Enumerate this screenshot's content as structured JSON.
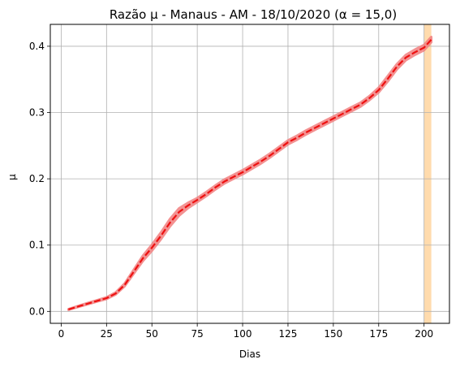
{
  "chart_data": {
    "type": "line",
    "title": "Razão μ - Manaus - AM - 18/10/2020 (α = 15,0)",
    "xlabel": "Dias",
    "ylabel": "μ",
    "xlim": [
      -6,
      214
    ],
    "ylim": [
      -0.018,
      0.433
    ],
    "xticks": [
      0,
      25,
      50,
      75,
      100,
      125,
      150,
      175,
      200
    ],
    "xtick_labels": [
      "0",
      "25",
      "50",
      "75",
      "100",
      "125",
      "150",
      "175",
      "200"
    ],
    "yticks": [
      0.0,
      0.1,
      0.2,
      0.3,
      0.4
    ],
    "ytick_labels": [
      "0.0",
      "0.1",
      "0.2",
      "0.3",
      "0.4"
    ],
    "grid": true,
    "shaded_region": {
      "x": [
        200,
        204
      ],
      "color": "#ffdbad"
    },
    "series": [
      {
        "style": "dashed",
        "color": "#ee1111",
        "band_color": "#f28080",
        "x": [
          4,
          10,
          15,
          20,
          25,
          30,
          35,
          40,
          45,
          50,
          55,
          60,
          65,
          70,
          75,
          80,
          85,
          90,
          95,
          100,
          105,
          110,
          115,
          120,
          125,
          130,
          135,
          140,
          145,
          150,
          155,
          160,
          165,
          170,
          175,
          180,
          185,
          190,
          195,
          200,
          204
        ],
        "y": [
          0.003,
          0.008,
          0.012,
          0.016,
          0.02,
          0.027,
          0.04,
          0.06,
          0.08,
          0.096,
          0.114,
          0.134,
          0.15,
          0.16,
          0.168,
          0.177,
          0.187,
          0.196,
          0.203,
          0.21,
          0.218,
          0.226,
          0.235,
          0.245,
          0.255,
          0.262,
          0.27,
          0.277,
          0.284,
          0.291,
          0.298,
          0.305,
          0.312,
          0.322,
          0.334,
          0.351,
          0.369,
          0.383,
          0.391,
          0.398,
          0.41
        ],
        "band_halfwidth": [
          0.0005,
          0.0007,
          0.001,
          0.001,
          0.0012,
          0.0015,
          0.002,
          0.003,
          0.004,
          0.0045,
          0.005,
          0.0055,
          0.0055,
          0.004,
          0.003,
          0.003,
          0.003,
          0.003,
          0.003,
          0.003,
          0.003,
          0.003,
          0.003,
          0.003,
          0.003,
          0.003,
          0.003,
          0.003,
          0.003,
          0.003,
          0.003,
          0.003,
          0.003,
          0.003,
          0.0035,
          0.004,
          0.004,
          0.004,
          0.004,
          0.004,
          0.004
        ]
      }
    ]
  }
}
